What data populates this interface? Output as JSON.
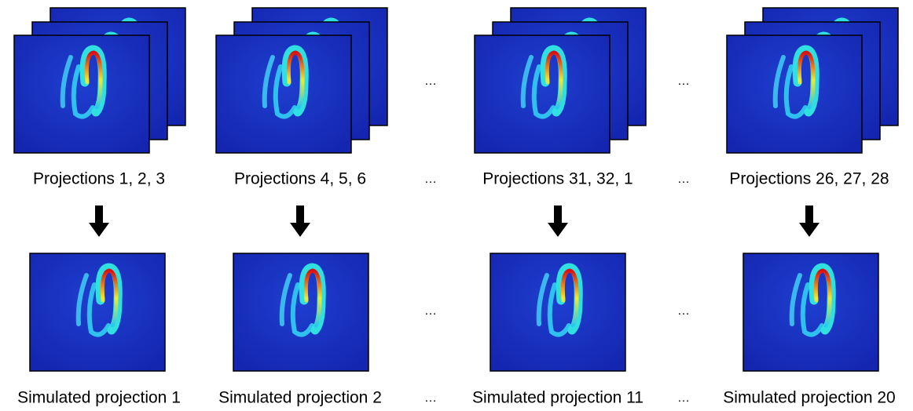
{
  "columns": [
    {
      "top_label": "Projections 1, 2, 3",
      "bottom_label": "Simulated projection 1"
    },
    {
      "top_label": "Projections 4, 5, 6",
      "bottom_label": "Simulated projection 2"
    },
    {
      "top_label": "Projections 31, 32, 1",
      "bottom_label": "Simulated projection 11"
    },
    {
      "top_label": "Projections 26, 27, 28",
      "bottom_label": "Simulated projection 20"
    }
  ],
  "gaps": [
    {
      "top_image": "…",
      "top_label": "…",
      "bottom_image": "…",
      "bottom_label": "…"
    },
    {
      "top_image": "…",
      "top_label": "…",
      "bottom_image": "…",
      "bottom_label": "…"
    }
  ]
}
